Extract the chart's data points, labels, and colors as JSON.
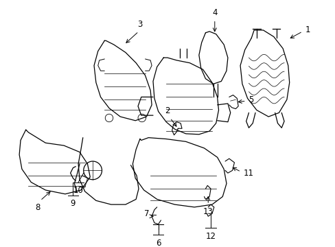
{
  "background_color": "#ffffff",
  "line_color": "#000000",
  "fig_width": 4.89,
  "fig_height": 3.6,
  "dpi": 100,
  "font_size": 8.5,
  "line_width": 0.9
}
